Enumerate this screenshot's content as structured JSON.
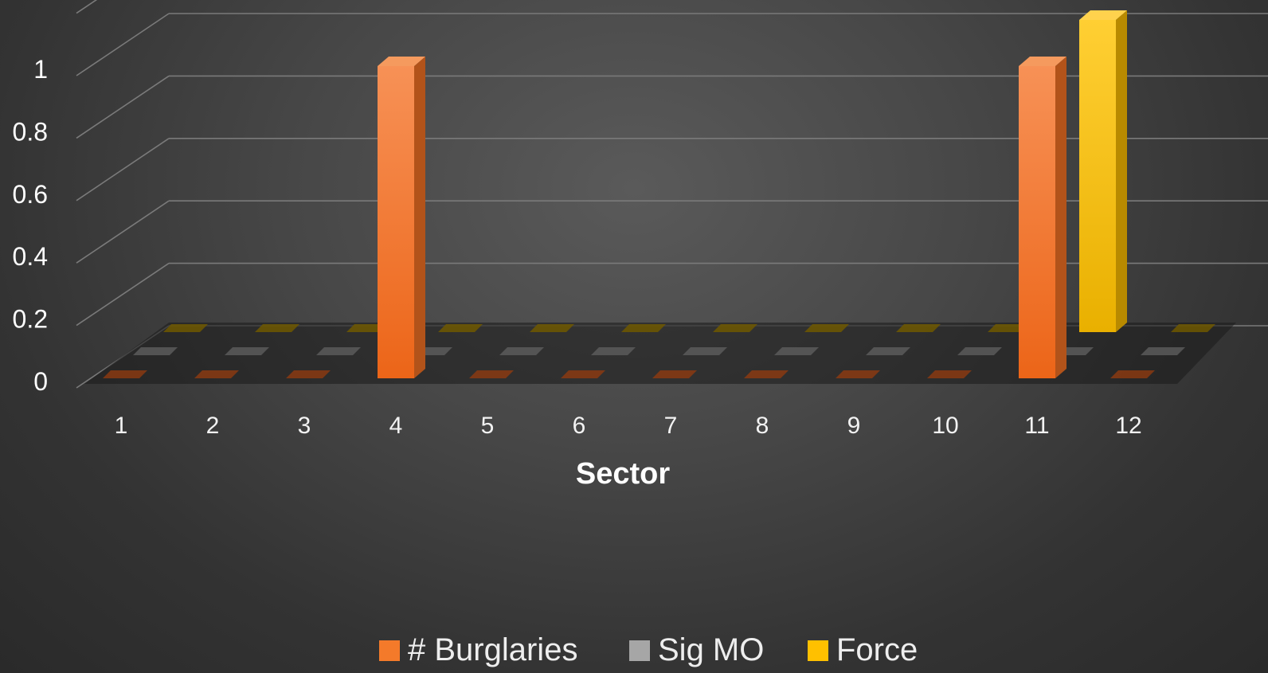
{
  "chart_data": {
    "type": "bar",
    "subtype": "3d-column",
    "title": "",
    "xlabel": "Sector",
    "ylabel": "",
    "ylim": [
      0,
      1.2
    ],
    "yticks": [
      "0",
      "0.2",
      "0.4",
      "0.6",
      "0.8",
      "1"
    ],
    "categories": [
      "1",
      "2",
      "3",
      "4",
      "5",
      "6",
      "7",
      "8",
      "9",
      "10",
      "11",
      "12"
    ],
    "series": [
      {
        "name": "# Burglaries",
        "color": "#f47a2a",
        "values": [
          0,
          0,
          0,
          1,
          0,
          0,
          0,
          0,
          0,
          0,
          1,
          0
        ]
      },
      {
        "name": "Sig MO",
        "color": "#a6a6a6",
        "values": [
          0,
          0,
          0,
          0,
          0,
          0,
          0,
          0,
          0,
          0,
          0,
          0
        ]
      },
      {
        "name": "Force",
        "color": "#ffc000",
        "values": [
          0,
          0,
          0,
          0,
          0,
          0,
          0,
          0,
          0,
          0,
          1,
          0
        ]
      }
    ],
    "grid": true,
    "legend_position": "bottom"
  }
}
